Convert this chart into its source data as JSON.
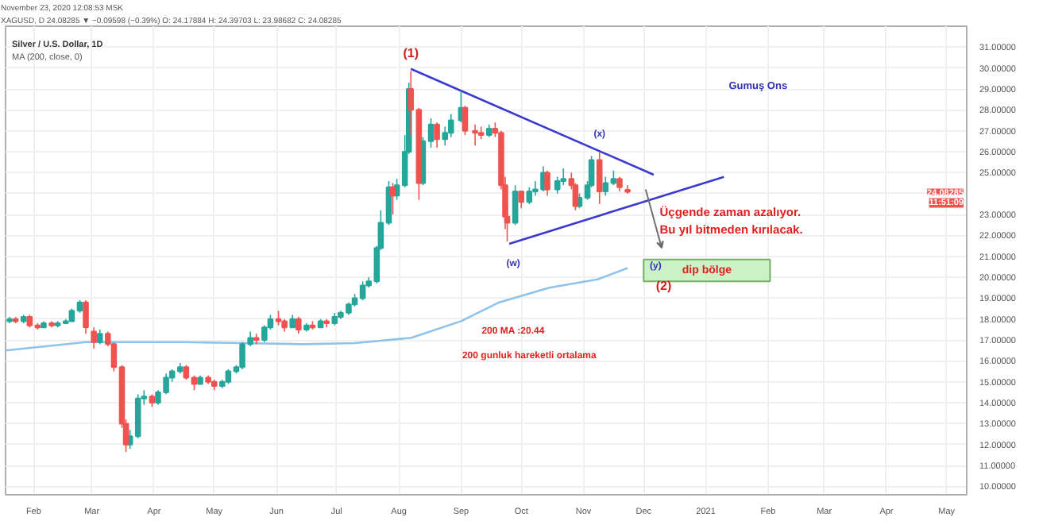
{
  "chart_data": {
    "type": "candlestick",
    "title": "Silver / U.S. Dollar, 1D",
    "subtitle": "MA (200, close, 0)",
    "x": [
      "2020-01-20",
      "2020-01-23",
      "2020-01-27",
      "2020-01-30",
      "2020-02-03",
      "2020-02-06",
      "2020-02-10",
      "2020-02-13",
      "2020-02-17",
      "2020-02-20",
      "2020-02-24",
      "2020-02-27",
      "2020-03-02",
      "2020-03-05",
      "2020-03-09",
      "2020-03-12",
      "2020-03-16",
      "2020-03-18",
      "2020-03-20",
      "2020-03-24",
      "2020-03-27",
      "2020-03-31",
      "2020-04-03",
      "2020-04-07",
      "2020-04-10",
      "2020-04-14",
      "2020-04-17",
      "2020-04-21",
      "2020-04-24",
      "2020-04-28",
      "2020-05-01",
      "2020-05-05",
      "2020-05-08",
      "2020-05-12",
      "2020-05-15",
      "2020-05-19",
      "2020-05-22",
      "2020-05-26",
      "2020-05-29",
      "2020-06-02",
      "2020-06-05",
      "2020-06-09",
      "2020-06-12",
      "2020-06-16",
      "2020-06-19",
      "2020-06-23",
      "2020-06-26",
      "2020-06-30",
      "2020-07-03",
      "2020-07-07",
      "2020-07-10",
      "2020-07-14",
      "2020-07-17",
      "2020-07-21",
      "2020-07-23",
      "2020-07-27",
      "2020-07-29",
      "2020-07-31",
      "2020-08-04",
      "2020-08-06",
      "2020-08-07",
      "2020-08-11",
      "2020-08-13",
      "2020-08-17",
      "2020-08-20",
      "2020-08-24",
      "2020-08-27",
      "2020-09-01",
      "2020-09-03",
      "2020-09-08",
      "2020-09-11",
      "2020-09-15",
      "2020-09-18",
      "2020-09-21",
      "2020-09-23",
      "2020-09-24",
      "2020-09-28",
      "2020-10-01",
      "2020-10-05",
      "2020-10-08",
      "2020-10-12",
      "2020-10-14",
      "2020-10-19",
      "2020-10-22",
      "2020-10-26",
      "2020-10-28",
      "2020-10-30",
      "2020-11-03",
      "2020-11-05",
      "2020-11-09",
      "2020-11-12",
      "2020-11-16",
      "2020-11-19",
      "2020-11-23"
    ],
    "ohlc": [
      [
        17.9,
        18.1,
        17.8,
        18.0
      ],
      [
        18.0,
        18.1,
        17.8,
        17.9
      ],
      [
        17.9,
        18.2,
        17.8,
        18.1
      ],
      [
        18.1,
        18.2,
        17.6,
        17.7
      ],
      [
        17.7,
        17.8,
        17.5,
        17.6
      ],
      [
        17.6,
        17.9,
        17.6,
        17.8
      ],
      [
        17.8,
        17.9,
        17.6,
        17.7
      ],
      [
        17.7,
        17.9,
        17.6,
        17.8
      ],
      [
        17.8,
        18.0,
        17.8,
        17.9
      ],
      [
        17.9,
        18.5,
        17.9,
        18.4
      ],
      [
        18.4,
        18.9,
        18.3,
        18.8
      ],
      [
        18.8,
        18.9,
        17.3,
        17.6
      ],
      [
        17.4,
        17.6,
        16.6,
        16.9
      ],
      [
        16.9,
        17.5,
        16.8,
        17.3
      ],
      [
        17.3,
        17.4,
        16.7,
        16.8
      ],
      [
        16.8,
        16.9,
        15.5,
        15.7
      ],
      [
        15.7,
        15.8,
        12.8,
        13.0
      ],
      [
        13.0,
        13.2,
        11.65,
        12.0
      ],
      [
        12.0,
        12.7,
        11.8,
        12.4
      ],
      [
        12.4,
        14.4,
        12.3,
        14.2
      ],
      [
        14.2,
        14.6,
        13.9,
        14.3
      ],
      [
        14.3,
        14.4,
        13.8,
        14.0
      ],
      [
        14.0,
        14.6,
        13.9,
        14.5
      ],
      [
        14.5,
        15.4,
        14.4,
        15.2
      ],
      [
        15.2,
        15.6,
        15.0,
        15.5
      ],
      [
        15.5,
        15.9,
        15.4,
        15.7
      ],
      [
        15.7,
        15.8,
        15.1,
        15.2
      ],
      [
        15.2,
        15.3,
        14.6,
        14.9
      ],
      [
        14.9,
        15.3,
        14.9,
        15.2
      ],
      [
        15.2,
        15.3,
        14.9,
        15.0
      ],
      [
        15.0,
        15.1,
        14.6,
        14.8
      ],
      [
        14.8,
        15.1,
        14.7,
        15.0
      ],
      [
        15.0,
        15.6,
        14.9,
        15.5
      ],
      [
        15.5,
        15.8,
        15.4,
        15.7
      ],
      [
        15.7,
        16.9,
        15.6,
        16.8
      ],
      [
        16.8,
        17.4,
        16.7,
        17.1
      ],
      [
        17.1,
        17.3,
        16.8,
        17.0
      ],
      [
        17.0,
        17.7,
        16.9,
        17.6
      ],
      [
        17.6,
        18.2,
        17.5,
        18.0
      ],
      [
        18.0,
        18.4,
        17.7,
        17.9
      ],
      [
        17.9,
        18.0,
        17.4,
        17.6
      ],
      [
        17.6,
        18.2,
        17.6,
        18.0
      ],
      [
        18.0,
        18.1,
        17.3,
        17.5
      ],
      [
        17.5,
        17.8,
        17.4,
        17.7
      ],
      [
        17.7,
        17.9,
        17.5,
        17.6
      ],
      [
        17.6,
        18.0,
        17.6,
        17.9
      ],
      [
        17.9,
        18.0,
        17.6,
        17.8
      ],
      [
        17.8,
        18.3,
        17.7,
        18.1
      ],
      [
        18.1,
        18.4,
        18.0,
        18.3
      ],
      [
        18.3,
        18.8,
        18.2,
        18.7
      ],
      [
        18.7,
        19.2,
        18.6,
        19.0
      ],
      [
        19.0,
        19.8,
        18.9,
        19.6
      ],
      [
        19.6,
        20.0,
        19.5,
        19.8
      ],
      [
        19.8,
        21.5,
        19.7,
        21.4
      ],
      [
        21.4,
        23.2,
        21.3,
        22.6
      ],
      [
        22.6,
        24.6,
        22.5,
        24.3
      ],
      [
        24.3,
        24.5,
        23.0,
        23.9
      ],
      [
        23.9,
        24.7,
        23.7,
        24.4
      ],
      [
        24.4,
        26.8,
        24.3,
        26.0
      ],
      [
        26.0,
        29.3,
        25.9,
        29.0
      ],
      [
        29.0,
        29.86,
        26.8,
        28.0
      ],
      [
        28.0,
        28.1,
        23.7,
        24.5
      ],
      [
        24.5,
        26.7,
        24.4,
        26.5
      ],
      [
        26.5,
        27.6,
        26.2,
        27.3
      ],
      [
        27.3,
        27.4,
        26.2,
        26.6
      ],
      [
        26.6,
        27.2,
        26.3,
        26.9
      ],
      [
        26.9,
        27.8,
        26.7,
        27.5
      ],
      [
        27.5,
        28.9,
        27.4,
        28.1
      ],
      [
        28.1,
        28.2,
        26.8,
        27.0
      ],
      [
        27.0,
        27.3,
        26.3,
        26.9
      ],
      [
        26.9,
        27.2,
        26.6,
        26.8
      ],
      [
        26.8,
        27.3,
        26.7,
        27.1
      ],
      [
        27.1,
        27.4,
        26.7,
        26.9
      ],
      [
        26.9,
        27.0,
        24.2,
        24.4
      ],
      [
        24.4,
        24.8,
        22.3,
        22.9
      ],
      [
        22.9,
        23.4,
        21.7,
        22.6
      ],
      [
        22.6,
        24.4,
        22.5,
        24.1
      ],
      [
        24.1,
        24.1,
        23.3,
        23.6
      ],
      [
        23.6,
        24.3,
        23.5,
        24.1
      ],
      [
        24.1,
        24.6,
        23.9,
        24.2
      ],
      [
        24.2,
        25.3,
        24.1,
        25.0
      ],
      [
        25.0,
        25.1,
        23.9,
        24.2
      ],
      [
        24.2,
        24.8,
        24.0,
        24.6
      ],
      [
        24.6,
        25.2,
        24.4,
        24.7
      ],
      [
        24.7,
        25.0,
        24.2,
        24.4
      ],
      [
        24.4,
        24.5,
        23.2,
        23.4
      ],
      [
        23.4,
        24.0,
        23.3,
        23.8
      ],
      [
        23.8,
        24.6,
        23.7,
        24.4
      ],
      [
        24.4,
        25.8,
        24.3,
        25.6
      ],
      [
        25.6,
        26.0,
        23.5,
        24.1
      ],
      [
        24.1,
        24.8,
        23.9,
        24.5
      ],
      [
        24.5,
        25.1,
        24.4,
        24.7
      ],
      [
        24.7,
        24.8,
        24.1,
        24.3
      ],
      [
        24.18,
        24.4,
        23.99,
        24.08
      ]
    ],
    "series": [
      {
        "type": "line",
        "color": "#8fc3ea",
        "x": [
          "2020-01-18",
          "2020-02-27",
          "2020-04-15",
          "2020-05-15",
          "2020-06-15",
          "2020-07-10",
          "2020-08-07",
          "2020-09-01",
          "2020-09-20",
          "2020-10-15",
          "2020-11-08",
          "2020-11-23"
        ],
        "values": [
          16.5,
          16.9,
          16.9,
          16.85,
          16.8,
          16.85,
          17.1,
          17.9,
          18.8,
          19.5,
          19.9,
          20.44
        ]
      },
      {
        "type": "line",
        "color": "#3a3ad0",
        "x": [
          "2020-08-07",
          "2020-12-06"
        ],
        "values": [
          29.96,
          24.9
        ]
      },
      {
        "type": "line",
        "color": "#3a3ad0",
        "x": [
          "2020-09-25",
          "2021-01-10"
        ],
        "values": [
          21.6,
          24.8
        ]
      }
    ],
    "annotations": [
      "November 23, 2020 12:08:53 MSK",
      "XAGUSD, D  24.08285 ▼ −0.09598 (−0.39%) O: 24.17884 H: 24.39703 L: 23.98682 C: 24.08285",
      "24.08285",
      "11:51:09",
      "(1)",
      "(x)",
      "(w)",
      "(y)",
      "(2)",
      "Gumuş Ons",
      "Üçgende zaman azalıyor.\nBu yıl bitmeden kırılacak.",
      "200 MA :20.44",
      "200 gunluk hareketli ortalama"
    ],
    "bands": [
      {
        "axis": "y",
        "from": 19.8,
        "to": 20.85,
        "label": "dip bölge",
        "color": "#c8f0c0"
      }
    ],
    "xlim": [
      "2020-01-18",
      "2021-05-11"
    ],
    "xticks": [
      {
        "value": "2020-02-01",
        "label": "Feb"
      },
      {
        "value": "2020-03-01",
        "label": "Mar"
      },
      {
        "value": "2020-04-01",
        "label": "Apr"
      },
      {
        "value": "2020-05-01",
        "label": "May"
      },
      {
        "value": "2020-06-01",
        "label": "Jun"
      },
      {
        "value": "2020-07-01",
        "label": "Jul"
      },
      {
        "value": "2020-08-01",
        "label": "Aug"
      },
      {
        "value": "2020-09-01",
        "label": "Sep"
      },
      {
        "value": "2020-10-01",
        "label": "Oct"
      },
      {
        "value": "2020-11-01",
        "label": "Nov"
      },
      {
        "value": "2020-12-01",
        "label": "Dec"
      },
      {
        "value": "2021-01-01",
        "label": "2021"
      },
      {
        "value": "2021-02-01",
        "label": "Feb"
      },
      {
        "value": "2021-03-01",
        "label": "Mar"
      },
      {
        "value": "2021-04-01",
        "label": "Apr"
      },
      {
        "value": "2021-05-01",
        "label": "May"
      }
    ],
    "ylim": [
      9.6,
      32.0
    ],
    "yticks": [
      {
        "value": 10,
        "label": "10.00000"
      },
      {
        "value": 11,
        "label": "11.00000"
      },
      {
        "value": 12,
        "label": "12.00000"
      },
      {
        "value": 13,
        "label": "13.00000"
      },
      {
        "value": 14,
        "label": "14.00000"
      },
      {
        "value": 15,
        "label": "15.00000"
      },
      {
        "value": 16,
        "label": "16.00000"
      },
      {
        "value": 17,
        "label": "17.00000"
      },
      {
        "value": 18,
        "label": "18.00000"
      },
      {
        "value": 19,
        "label": "19.00000"
      },
      {
        "value": 20,
        "label": "20.00000"
      },
      {
        "value": 21,
        "label": "21.00000"
      },
      {
        "value": 22,
        "label": "22.00000"
      },
      {
        "value": 23,
        "label": "23.00000"
      },
      {
        "value": 24,
        "label": null
      },
      {
        "value": 25,
        "label": "25.00000"
      },
      {
        "value": 26,
        "label": "26.00000"
      },
      {
        "value": 27,
        "label": "27.00000"
      },
      {
        "value": 28,
        "label": "28.00000"
      },
      {
        "value": 29,
        "label": "29.00000"
      },
      {
        "value": 30,
        "label": "30.00000"
      },
      {
        "value": 31,
        "label": "31.00000"
      }
    ],
    "grid": true
  }
}
